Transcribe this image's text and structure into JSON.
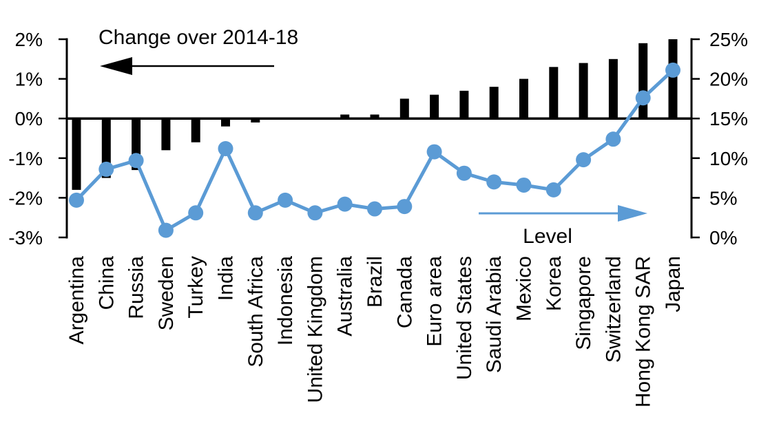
{
  "chart_data": {
    "type": "bar",
    "subtype": "dual-axis bar and line",
    "title": "",
    "categories": [
      "Argentina",
      "China",
      "Russia",
      "Sweden",
      "Turkey",
      "India",
      "South Africa",
      "Indonesia",
      "United Kingdom",
      "Australia",
      "Brazil",
      "Canada",
      "Euro area",
      "United States",
      "Saudi Arabia",
      "Mexico",
      "Korea",
      "Singapore",
      "Switzerland",
      "Hong Kong SAR",
      "Japan"
    ],
    "series": [
      {
        "name": "Change over 2014-18",
        "type": "bar",
        "axis": "left",
        "color": "#000000",
        "values": [
          -1.8,
          -1.5,
          -1.3,
          -0.8,
          -0.6,
          -0.2,
          -0.1,
          0.0,
          0.0,
          0.1,
          0.1,
          0.5,
          0.6,
          0.7,
          0.8,
          1.0,
          1.3,
          1.4,
          1.5,
          1.9,
          2.0
        ]
      },
      {
        "name": "Level",
        "type": "line",
        "axis": "right",
        "color": "#5B9BD5",
        "values": [
          4.7,
          8.6,
          9.7,
          0.9,
          3.1,
          11.2,
          3.1,
          4.7,
          3.1,
          4.2,
          3.6,
          3.9,
          10.8,
          8.1,
          7.0,
          6.6,
          6.0,
          9.8,
          12.4,
          17.6,
          21.1
        ]
      }
    ],
    "left_axis": {
      "min": -3,
      "max": 2,
      "unit": "%",
      "tick_values": [
        2,
        1,
        0,
        -1,
        -2,
        -3
      ],
      "tick_labels": [
        "2%",
        "1%",
        "0%",
        "-1%",
        "-2%",
        "-3%"
      ]
    },
    "right_axis": {
      "min": 0,
      "max": 25,
      "unit": "%",
      "tick_values": [
        25,
        20,
        15,
        10,
        5,
        0
      ],
      "tick_labels": [
        "25%",
        "20%",
        "15%",
        "10%",
        "5%",
        "0%"
      ]
    },
    "annotations": [
      {
        "text": "Change over 2014-18",
        "arrow_direction": "left",
        "color": "#000000"
      },
      {
        "text": "Level",
        "arrow_direction": "right",
        "color": "#5B9BD5"
      }
    ],
    "grid": "off",
    "legend_position": "in-plot annotations",
    "background": "#FFFFFF"
  }
}
